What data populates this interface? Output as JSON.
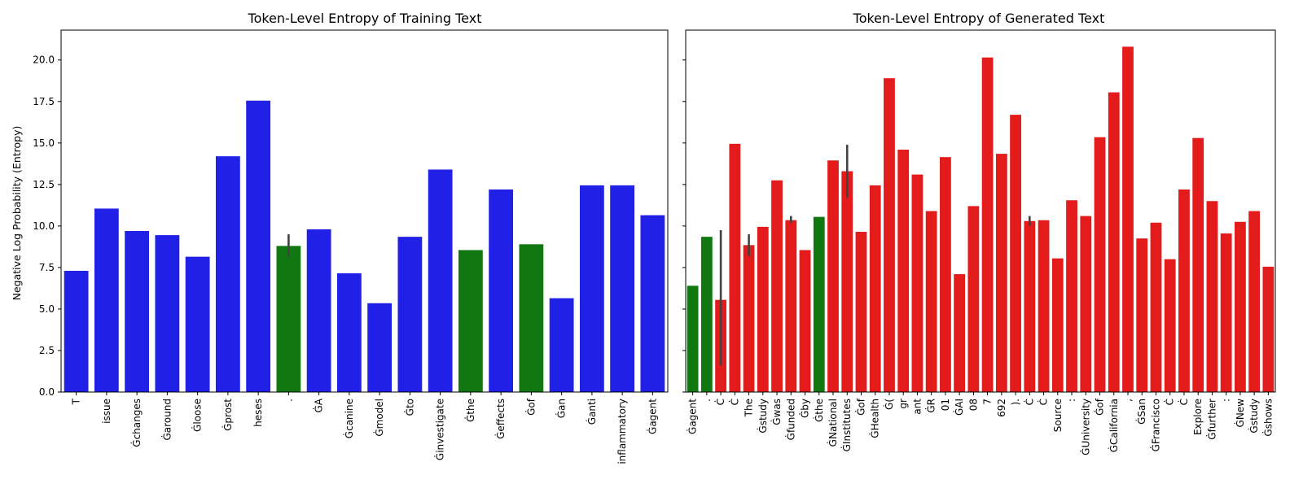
{
  "chart_data": [
    {
      "type": "bar",
      "title": "Token-Level Entropy of Training Text",
      "xlabel": "",
      "ylabel": "Negative Log Probability (Entropy)",
      "ylim": [
        0,
        21.8
      ],
      "yticks": [
        "0.0",
        "2.5",
        "5.0",
        "7.5",
        "10.0",
        "12.5",
        "15.0",
        "17.5",
        "20.0"
      ],
      "grid": false,
      "colors": {
        "primary": "#2020e6",
        "highlight": "#117811",
        "errorbar": "#424242"
      },
      "categories": [
        "T",
        "issue",
        "Ġchanges",
        "Ġaround",
        "Ġloose",
        "Ġprost",
        "heses",
        ".",
        "ĠA",
        "Ġcanine",
        "Ġmodel",
        "Ġto",
        "Ġinvestigate",
        "Ġthe",
        "Ġeffects",
        "Ġof",
        "Ġan",
        "Ġanti",
        "inflammatory",
        "Ġagent"
      ],
      "values": [
        7.3,
        11.05,
        9.7,
        9.45,
        8.15,
        14.2,
        17.55,
        8.8,
        9.8,
        7.15,
        5.35,
        9.35,
        13.4,
        8.55,
        12.2,
        8.9,
        5.65,
        12.45,
        12.45,
        10.65
      ],
      "highlight": [
        0,
        0,
        0,
        0,
        0,
        0,
        0,
        1,
        0,
        0,
        0,
        0,
        0,
        1,
        0,
        1,
        0,
        0,
        0,
        0
      ],
      "error_low": [
        null,
        null,
        null,
        null,
        null,
        null,
        null,
        8.1,
        null,
        null,
        null,
        null,
        null,
        null,
        null,
        null,
        null,
        null,
        null,
        null
      ],
      "error_high": [
        null,
        null,
        null,
        null,
        null,
        null,
        null,
        9.5,
        null,
        null,
        null,
        null,
        null,
        null,
        null,
        null,
        null,
        null,
        null,
        null
      ]
    },
    {
      "type": "bar",
      "title": "Token-Level Entropy of Generated Text",
      "xlabel": "",
      "ylabel": "",
      "ylim": [
        0,
        21.8
      ],
      "yticks": [],
      "grid": false,
      "colors": {
        "primary": "#e31b1b",
        "highlight": "#117811",
        "errorbar": "#424242"
      },
      "categories": [
        "Ġagent",
        ".",
        "Ċ",
        "Ċ",
        "The",
        "Ġstudy",
        "Ġwas",
        "Ġfunded",
        "Ġby",
        "Ġthe",
        "ĠNational",
        "ĠInstitutes",
        "Ġof",
        "ĠHealth",
        "Ġ(",
        "gr",
        "ant",
        "ĠR",
        "01",
        "ĠAI",
        "08",
        "7",
        "692",
        ").",
        "Ċ",
        "Ċ",
        "Source",
        ":",
        "ĠUniversity",
        "Ġof",
        "ĠCalifornia",
        ",",
        "ĠSan",
        "ĠFrancisco",
        "Ċ",
        "Ċ",
        "Explore",
        "Ġfurther",
        ":",
        "ĠNew",
        "Ġstudy",
        "Ġshows"
      ],
      "values": [
        6.4,
        9.35,
        5.55,
        14.95,
        8.85,
        9.95,
        12.75,
        10.35,
        8.55,
        10.55,
        13.95,
        13.3,
        9.65,
        12.45,
        18.9,
        14.6,
        13.1,
        10.9,
        14.15,
        7.1,
        11.2,
        20.15,
        14.35,
        16.7,
        10.3,
        10.35,
        8.05,
        11.55,
        10.6,
        15.35,
        18.05,
        20.8,
        9.25,
        10.2,
        8.0,
        12.2,
        15.3,
        11.5,
        9.55,
        10.25,
        10.9,
        7.55
      ],
      "highlight": [
        1,
        1,
        0,
        0,
        0,
        0,
        0,
        0,
        0,
        1,
        0,
        0,
        0,
        0,
        0,
        0,
        0,
        0,
        0,
        0,
        0,
        0,
        0,
        0,
        0,
        0,
        0,
        0,
        0,
        0,
        0,
        0,
        0,
        0,
        0,
        0,
        0,
        0,
        0,
        0,
        0,
        0
      ],
      "error_low": [
        null,
        null,
        1.6,
        null,
        8.2,
        null,
        null,
        10.2,
        null,
        null,
        null,
        11.7,
        null,
        null,
        null,
        null,
        null,
        null,
        null,
        null,
        null,
        null,
        null,
        null,
        10.0,
        null,
        null,
        null,
        null,
        null,
        null,
        null,
        null,
        null,
        null,
        null,
        null,
        null,
        null,
        null,
        null,
        null
      ],
      "error_high": [
        null,
        null,
        9.75,
        null,
        9.5,
        null,
        null,
        10.6,
        null,
        null,
        null,
        14.9,
        null,
        null,
        null,
        null,
        null,
        null,
        null,
        null,
        null,
        null,
        null,
        null,
        10.6,
        null,
        null,
        null,
        null,
        null,
        null,
        null,
        null,
        null,
        null,
        null,
        null,
        null,
        null,
        null,
        null,
        null
      ]
    }
  ]
}
